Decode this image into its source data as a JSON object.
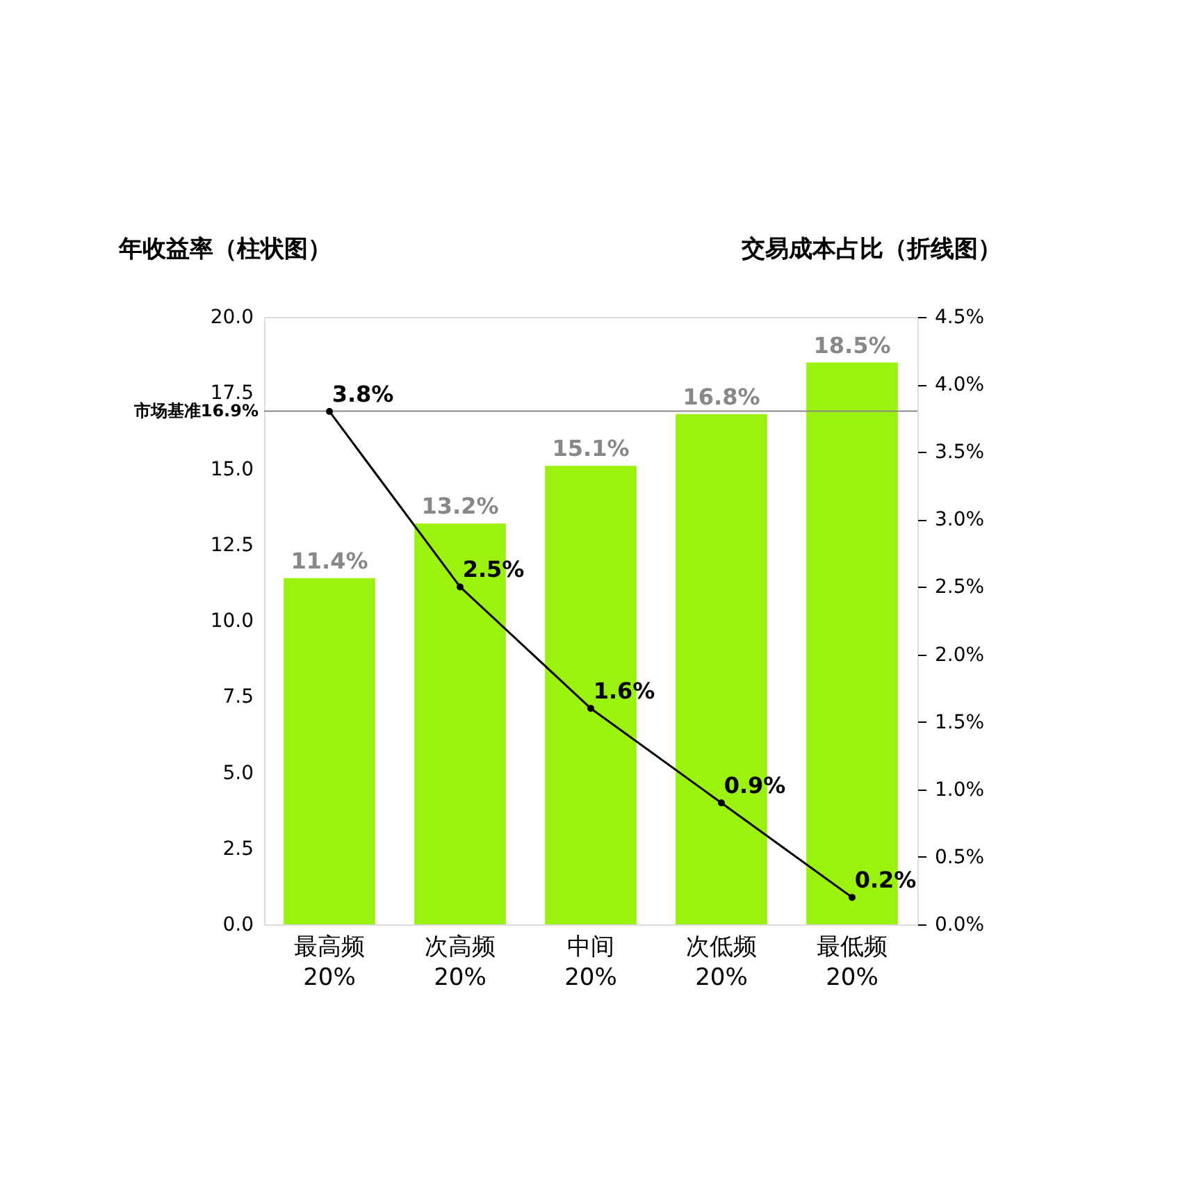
{
  "chart_data": {
    "type": "bar",
    "categories": [
      "最高频\n20%",
      "次高频\n20%",
      "中间\n20%",
      "次低频\n20%",
      "最低频\n20%"
    ],
    "series": [
      {
        "color": "#9cf20f",
        "values": [
          11.4,
          13.2,
          15.1,
          16.8,
          18.5
        ],
        "value_labels": [
          "11.4%",
          "13.2%",
          "15.1%",
          "16.8%",
          "18.5%"
        ]
      },
      {
        "type": "line",
        "axis": "y2",
        "color": "#000000",
        "marker": "circle",
        "line_style": "solid",
        "values": [
          3.8,
          2.5,
          1.6,
          0.9,
          0.2
        ],
        "value_labels": [
          "3.8%",
          "2.5%",
          "1.6%",
          "0.9%",
          "0.2%"
        ]
      }
    ],
    "ylabel": "年收益率（柱状图）",
    "y2label": "交易成本占比（折线图）",
    "ylim": [
      0,
      20
    ],
    "yticks": [
      {
        "value": 0,
        "label": "0.0"
      },
      {
        "value": 2.5,
        "label": "2.5"
      },
      {
        "value": 5,
        "label": "5.0"
      },
      {
        "value": 7.5,
        "label": "7.5"
      },
      {
        "value": 10,
        "label": "10.0"
      },
      {
        "value": 12.5,
        "label": "12.5"
      },
      {
        "value": 15,
        "label": "15.0"
      },
      {
        "value": 17.5,
        "label": "17.5"
      },
      {
        "value": 20,
        "label": "20.0"
      }
    ],
    "y2lim": [
      0,
      4.5
    ],
    "y2ticks": [
      {
        "value": 0,
        "label": "0.0%"
      },
      {
        "value": 0.5,
        "label": "0.5%"
      },
      {
        "value": 1,
        "label": "1.0%"
      },
      {
        "value": 1.5,
        "label": "1.5%"
      },
      {
        "value": 2,
        "label": "2.0%"
      },
      {
        "value": 2.5,
        "label": "2.5%"
      },
      {
        "value": 3,
        "label": "3.0%"
      },
      {
        "value": 3.5,
        "label": "3.5%"
      },
      {
        "value": 4,
        "label": "4.0%"
      },
      {
        "value": 4.5,
        "label": "4.5%"
      }
    ],
    "ref_lines": [
      {
        "axis": "y",
        "value": 16.9,
        "label": "市场基准16.9%",
        "color": "#888888",
        "line_style": "solid"
      }
    ]
  }
}
